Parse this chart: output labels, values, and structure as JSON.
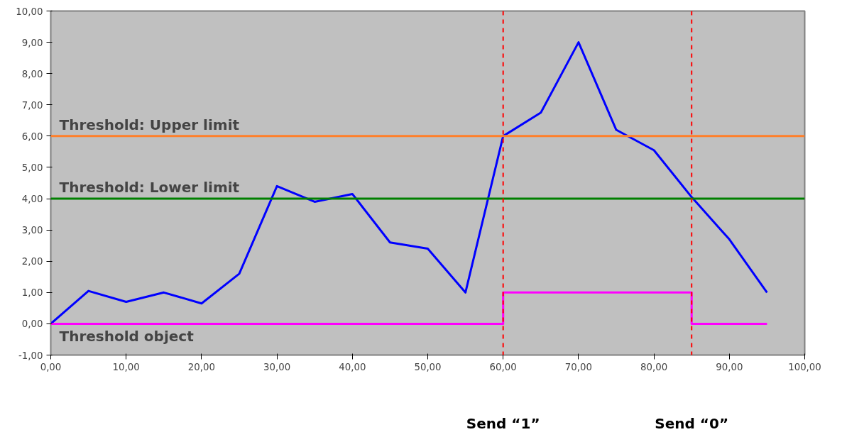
{
  "chart_data": {
    "type": "line",
    "x": [
      0,
      5,
      10,
      15,
      20,
      25,
      30,
      35,
      40,
      45,
      50,
      55,
      60,
      65,
      70,
      75,
      80,
      85,
      90,
      95
    ],
    "series": [
      {
        "color": "#0000ff",
        "values": [
          0,
          1.05,
          0.7,
          1.0,
          0.65,
          1.6,
          4.4,
          3.9,
          4.15,
          2.6,
          2.4,
          1.0,
          6.0,
          6.75,
          9.0,
          6.2,
          5.55,
          4.05,
          2.7,
          1.0
        ]
      },
      {
        "type": "step",
        "color": "#ff00ff",
        "values": [
          0,
          0,
          0,
          0,
          0,
          0,
          0,
          0,
          0,
          0,
          0,
          0,
          1,
          1,
          1,
          1,
          1,
          0,
          0,
          0
        ]
      }
    ],
    "xlim": [
      0,
      100
    ],
    "ylim": [
      -1,
      10
    ],
    "xticks": [
      {
        "value": 0,
        "label": "0,00"
      },
      {
        "value": 10,
        "label": "10,00"
      },
      {
        "value": 20,
        "label": "20,00"
      },
      {
        "value": 30,
        "label": "30,00"
      },
      {
        "value": 40,
        "label": "40,00"
      },
      {
        "value": 50,
        "label": "50,00"
      },
      {
        "value": 60,
        "label": "60,00"
      },
      {
        "value": 70,
        "label": "70,00"
      },
      {
        "value": 80,
        "label": "80,00"
      },
      {
        "value": 90,
        "label": "90,00"
      },
      {
        "value": 100,
        "label": "100,00"
      }
    ],
    "yticks": [
      {
        "value": -1,
        "label": "-1,00"
      },
      {
        "value": 0,
        "label": "0,00"
      },
      {
        "value": 1,
        "label": "1,00"
      },
      {
        "value": 2,
        "label": "2,00"
      },
      {
        "value": 3,
        "label": "3,00"
      },
      {
        "value": 4,
        "label": "4,00"
      },
      {
        "value": 5,
        "label": "5,00"
      },
      {
        "value": 6,
        "label": "6,00"
      },
      {
        "value": 7,
        "label": "7,00"
      },
      {
        "value": 8,
        "label": "8,00"
      },
      {
        "value": 9,
        "label": "9,00"
      },
      {
        "value": 10,
        "label": "10,00"
      }
    ],
    "ref_lines": [
      {
        "axis": "y",
        "value": 6,
        "label": "Threshold: Upper limit",
        "color": "#ff7f2a"
      },
      {
        "axis": "y",
        "value": 4,
        "label": "Threshold: Lower limit",
        "color": "#008000"
      },
      {
        "axis": "x",
        "value": 60,
        "color": "#ff0000",
        "line_style": "dashed"
      },
      {
        "axis": "x",
        "value": 85,
        "color": "#ff0000",
        "line_style": "dashed"
      }
    ],
    "annotations": [
      {
        "text": "Threshold object",
        "x": 0,
        "y": 0
      },
      "Send “1”",
      "Send “0”"
    ],
    "grid": false,
    "marker": "none",
    "line_style": "solid"
  }
}
